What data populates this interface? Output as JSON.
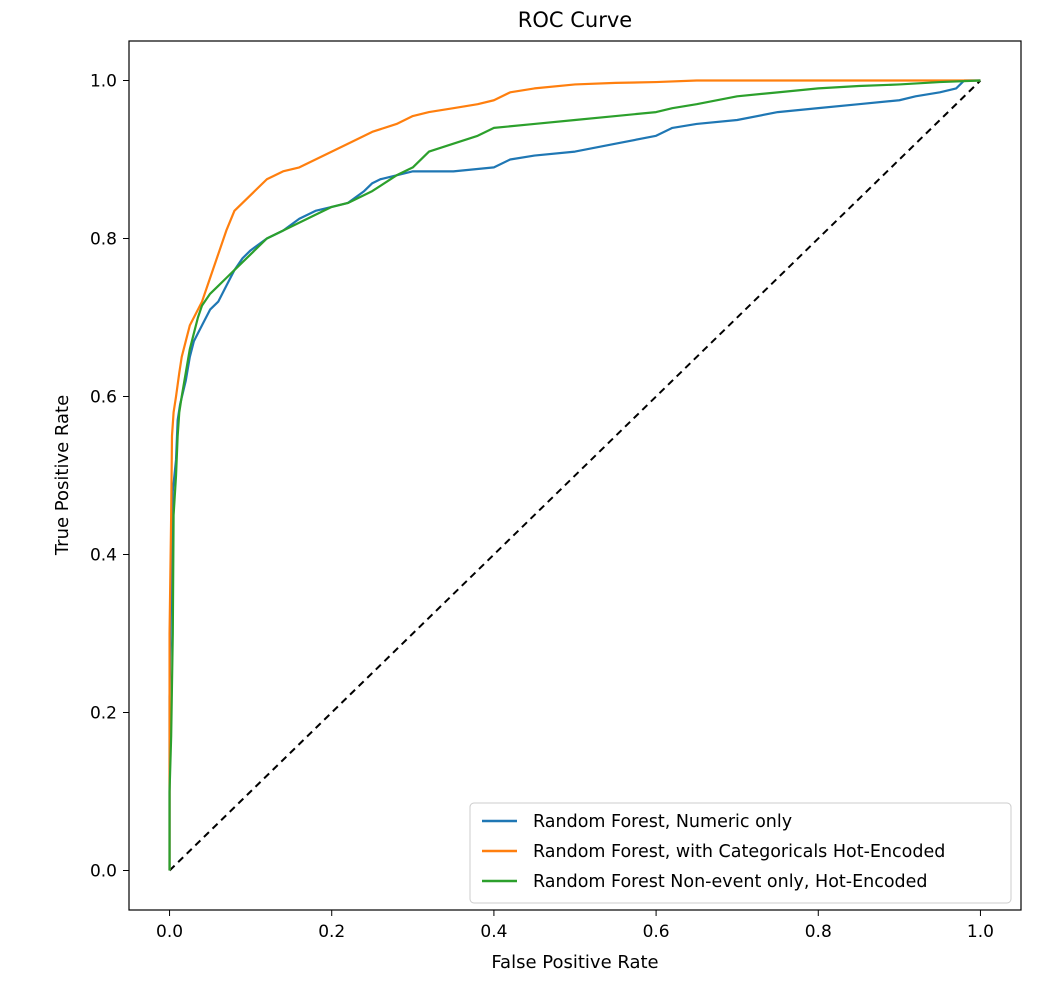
{
  "chart_data": {
    "type": "line",
    "title": "ROC Curve",
    "xlabel": "False Positive Rate",
    "ylabel": "True Positive Rate",
    "xlim": [
      -0.05,
      1.05
    ],
    "ylim": [
      -0.05,
      1.05
    ],
    "xticks": [
      0.0,
      0.2,
      0.4,
      0.6,
      0.8,
      1.0
    ],
    "yticks": [
      0.0,
      0.2,
      0.4,
      0.6,
      0.8,
      1.0
    ],
    "xtick_labels": [
      "0.0",
      "0.2",
      "0.4",
      "0.6",
      "0.8",
      "1.0"
    ],
    "ytick_labels": [
      "0.0",
      "0.2",
      "0.4",
      "0.6",
      "0.8",
      "1.0"
    ],
    "grid": false,
    "legend_position": "lower right",
    "series": [
      {
        "name": "Random Forest, Numeric only",
        "color": "#1f77b4",
        "x": [
          0.0,
          0.0,
          0.002,
          0.004,
          0.004,
          0.008,
          0.01,
          0.013,
          0.02,
          0.025,
          0.03,
          0.035,
          0.04,
          0.05,
          0.06,
          0.07,
          0.08,
          0.09,
          0.1,
          0.12,
          0.14,
          0.16,
          0.18,
          0.2,
          0.22,
          0.24,
          0.25,
          0.26,
          0.28,
          0.3,
          0.35,
          0.4,
          0.42,
          0.45,
          0.5,
          0.55,
          0.6,
          0.62,
          0.65,
          0.7,
          0.75,
          0.8,
          0.85,
          0.9,
          0.92,
          0.95,
          0.97,
          0.98,
          1.0
        ],
        "y": [
          0.0,
          0.22,
          0.35,
          0.45,
          0.48,
          0.52,
          0.57,
          0.59,
          0.62,
          0.65,
          0.67,
          0.68,
          0.69,
          0.71,
          0.72,
          0.74,
          0.76,
          0.775,
          0.785,
          0.8,
          0.81,
          0.825,
          0.835,
          0.84,
          0.845,
          0.86,
          0.87,
          0.875,
          0.88,
          0.885,
          0.885,
          0.89,
          0.9,
          0.905,
          0.91,
          0.92,
          0.93,
          0.94,
          0.945,
          0.95,
          0.96,
          0.965,
          0.97,
          0.975,
          0.98,
          0.985,
          0.99,
          1.0,
          1.0
        ]
      },
      {
        "name": "Random Forest, with Categoricals Hot-Encoded",
        "color": "#ff7f0e",
        "x": [
          0.0,
          0.0,
          0.002,
          0.003,
          0.005,
          0.008,
          0.012,
          0.015,
          0.02,
          0.025,
          0.03,
          0.04,
          0.05,
          0.06,
          0.07,
          0.08,
          0.09,
          0.1,
          0.12,
          0.14,
          0.16,
          0.18,
          0.2,
          0.22,
          0.25,
          0.28,
          0.3,
          0.32,
          0.35,
          0.38,
          0.4,
          0.42,
          0.45,
          0.5,
          0.55,
          0.6,
          0.65,
          1.0
        ],
        "y": [
          0.0,
          0.3,
          0.45,
          0.55,
          0.58,
          0.6,
          0.63,
          0.65,
          0.67,
          0.69,
          0.7,
          0.72,
          0.75,
          0.78,
          0.81,
          0.835,
          0.845,
          0.855,
          0.875,
          0.885,
          0.89,
          0.9,
          0.91,
          0.92,
          0.935,
          0.945,
          0.955,
          0.96,
          0.965,
          0.97,
          0.975,
          0.985,
          0.99,
          0.995,
          0.997,
          0.998,
          1.0,
          1.0
        ]
      },
      {
        "name": "Random Forest Non-event only, Hot-Encoded",
        "color": "#2ca02c",
        "x": [
          0.0,
          0.0,
          0.002,
          0.004,
          0.005,
          0.008,
          0.01,
          0.012,
          0.015,
          0.02,
          0.025,
          0.03,
          0.035,
          0.04,
          0.05,
          0.06,
          0.07,
          0.08,
          0.1,
          0.12,
          0.15,
          0.18,
          0.2,
          0.22,
          0.25,
          0.28,
          0.3,
          0.32,
          0.35,
          0.38,
          0.4,
          0.45,
          0.5,
          0.55,
          0.6,
          0.62,
          0.65,
          0.7,
          0.75,
          0.8,
          0.85,
          0.9,
          0.95,
          1.0
        ],
        "y": [
          0.0,
          0.1,
          0.17,
          0.3,
          0.45,
          0.5,
          0.55,
          0.58,
          0.6,
          0.63,
          0.66,
          0.68,
          0.7,
          0.715,
          0.73,
          0.74,
          0.75,
          0.76,
          0.78,
          0.8,
          0.815,
          0.83,
          0.84,
          0.845,
          0.86,
          0.88,
          0.89,
          0.91,
          0.92,
          0.93,
          0.94,
          0.945,
          0.95,
          0.955,
          0.96,
          0.965,
          0.97,
          0.98,
          0.985,
          0.99,
          0.993,
          0.995,
          0.998,
          1.0
        ]
      },
      {
        "name": "",
        "color": "#000000",
        "dashed": true,
        "x": [
          0.0,
          1.0
        ],
        "y": [
          0.0,
          1.0
        ]
      }
    ]
  }
}
